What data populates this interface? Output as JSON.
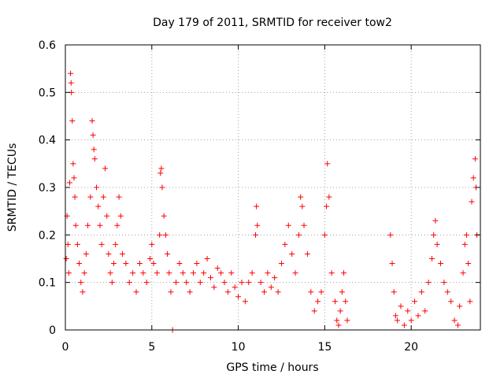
{
  "chart_data": {
    "type": "scatter",
    "title": "Day 179 of 2011, SRMTID for receiver tow2",
    "xlabel": "GPS time / hours",
    "ylabel": "SRMTID / TECUs",
    "xlim": [
      0,
      24
    ],
    "ylim": [
      0,
      0.6
    ],
    "x_ticks": [
      0,
      5,
      10,
      15,
      20
    ],
    "y_ticks": [
      0,
      0.1,
      0.2,
      0.3,
      0.4,
      0.5,
      0.6
    ],
    "x_tick_labels": [
      "0",
      "5",
      "10",
      "15",
      "20"
    ],
    "y_tick_labels": [
      "0",
      "0.1",
      "0.2",
      "0.3",
      "0.4",
      "0.5",
      "0.6"
    ],
    "grid": true,
    "marker": "+",
    "color": "#ff0000",
    "series": [
      {
        "name": "tow2",
        "points": [
          [
            0.05,
            0.15
          ],
          [
            0.1,
            0.24
          ],
          [
            0.15,
            0.18
          ],
          [
            0.2,
            0.12
          ],
          [
            0.25,
            0.31
          ],
          [
            0.3,
            0.54
          ],
          [
            0.33,
            0.52
          ],
          [
            0.35,
            0.5
          ],
          [
            0.4,
            0.44
          ],
          [
            0.45,
            0.35
          ],
          [
            0.5,
            0.32
          ],
          [
            0.55,
            0.28
          ],
          [
            0.6,
            0.22
          ],
          [
            0.7,
            0.18
          ],
          [
            0.8,
            0.14
          ],
          [
            0.9,
            0.1
          ],
          [
            1.0,
            0.08
          ],
          [
            1.1,
            0.12
          ],
          [
            1.2,
            0.16
          ],
          [
            1.3,
            0.22
          ],
          [
            1.45,
            0.28
          ],
          [
            1.55,
            0.44
          ],
          [
            1.6,
            0.41
          ],
          [
            1.65,
            0.38
          ],
          [
            1.7,
            0.36
          ],
          [
            1.8,
            0.3
          ],
          [
            1.9,
            0.26
          ],
          [
            2.0,
            0.22
          ],
          [
            2.1,
            0.18
          ],
          [
            2.2,
            0.28
          ],
          [
            2.3,
            0.34
          ],
          [
            2.4,
            0.24
          ],
          [
            2.5,
            0.16
          ],
          [
            2.6,
            0.12
          ],
          [
            2.7,
            0.1
          ],
          [
            2.8,
            0.14
          ],
          [
            2.9,
            0.18
          ],
          [
            3.0,
            0.22
          ],
          [
            3.1,
            0.28
          ],
          [
            3.2,
            0.24
          ],
          [
            3.3,
            0.16
          ],
          [
            3.5,
            0.14
          ],
          [
            3.7,
            0.1
          ],
          [
            3.9,
            0.12
          ],
          [
            4.1,
            0.08
          ],
          [
            4.3,
            0.14
          ],
          [
            4.5,
            0.12
          ],
          [
            4.7,
            0.1
          ],
          [
            4.9,
            0.15
          ],
          [
            5.0,
            0.18
          ],
          [
            5.1,
            0.14
          ],
          [
            5.3,
            0.12
          ],
          [
            5.45,
            0.2
          ],
          [
            5.5,
            0.33
          ],
          [
            5.55,
            0.34
          ],
          [
            5.6,
            0.3
          ],
          [
            5.7,
            0.24
          ],
          [
            5.8,
            0.2
          ],
          [
            5.9,
            0.16
          ],
          [
            6.0,
            0.12
          ],
          [
            6.1,
            0.08
          ],
          [
            6.2,
            0.0
          ],
          [
            6.4,
            0.1
          ],
          [
            6.6,
            0.14
          ],
          [
            6.8,
            0.12
          ],
          [
            7.0,
            0.1
          ],
          [
            7.2,
            0.08
          ],
          [
            7.4,
            0.12
          ],
          [
            7.6,
            0.14
          ],
          [
            7.8,
            0.1
          ],
          [
            8.0,
            0.12
          ],
          [
            8.2,
            0.15
          ],
          [
            8.4,
            0.11
          ],
          [
            8.6,
            0.09
          ],
          [
            8.8,
            0.13
          ],
          [
            9.0,
            0.12
          ],
          [
            9.2,
            0.1
          ],
          [
            9.4,
            0.08
          ],
          [
            9.6,
            0.12
          ],
          [
            9.8,
            0.09
          ],
          [
            10.0,
            0.07
          ],
          [
            10.2,
            0.1
          ],
          [
            10.4,
            0.06
          ],
          [
            10.6,
            0.1
          ],
          [
            10.8,
            0.12
          ],
          [
            11.0,
            0.2
          ],
          [
            11.05,
            0.26
          ],
          [
            11.1,
            0.22
          ],
          [
            11.3,
            0.1
          ],
          [
            11.5,
            0.08
          ],
          [
            11.7,
            0.12
          ],
          [
            11.9,
            0.09
          ],
          [
            12.1,
            0.11
          ],
          [
            12.3,
            0.08
          ],
          [
            12.5,
            0.14
          ],
          [
            12.7,
            0.18
          ],
          [
            12.9,
            0.22
          ],
          [
            13.1,
            0.16
          ],
          [
            13.3,
            0.12
          ],
          [
            13.5,
            0.2
          ],
          [
            13.6,
            0.28
          ],
          [
            13.7,
            0.26
          ],
          [
            13.8,
            0.22
          ],
          [
            14.0,
            0.16
          ],
          [
            14.2,
            0.08
          ],
          [
            14.4,
            0.04
          ],
          [
            14.6,
            0.06
          ],
          [
            14.8,
            0.08
          ],
          [
            15.0,
            0.2
          ],
          [
            15.1,
            0.26
          ],
          [
            15.15,
            0.35
          ],
          [
            15.25,
            0.28
          ],
          [
            15.4,
            0.12
          ],
          [
            15.6,
            0.06
          ],
          [
            15.7,
            0.02
          ],
          [
            15.8,
            0.01
          ],
          [
            15.9,
            0.04
          ],
          [
            16.0,
            0.08
          ],
          [
            16.1,
            0.12
          ],
          [
            16.2,
            0.06
          ],
          [
            16.3,
            0.02
          ],
          [
            18.8,
            0.2
          ],
          [
            18.9,
            0.14
          ],
          [
            19.0,
            0.08
          ],
          [
            19.1,
            0.03
          ],
          [
            19.2,
            0.02
          ],
          [
            19.4,
            0.05
          ],
          [
            19.6,
            0.01
          ],
          [
            19.8,
            0.04
          ],
          [
            20.0,
            0.02
          ],
          [
            20.2,
            0.06
          ],
          [
            20.4,
            0.03
          ],
          [
            20.6,
            0.08
          ],
          [
            20.8,
            0.04
          ],
          [
            21.0,
            0.1
          ],
          [
            21.2,
            0.15
          ],
          [
            21.3,
            0.2
          ],
          [
            21.4,
            0.23
          ],
          [
            21.5,
            0.18
          ],
          [
            21.7,
            0.14
          ],
          [
            21.9,
            0.1
          ],
          [
            22.1,
            0.08
          ],
          [
            22.3,
            0.06
          ],
          [
            22.5,
            0.02
          ],
          [
            22.7,
            0.01
          ],
          [
            22.8,
            0.05
          ],
          [
            23.0,
            0.12
          ],
          [
            23.1,
            0.18
          ],
          [
            23.2,
            0.2
          ],
          [
            23.3,
            0.14
          ],
          [
            23.4,
            0.06
          ],
          [
            23.5,
            0.27
          ],
          [
            23.6,
            0.32
          ],
          [
            23.7,
            0.36
          ],
          [
            23.75,
            0.3
          ],
          [
            23.8,
            0.2
          ]
        ]
      }
    ]
  }
}
